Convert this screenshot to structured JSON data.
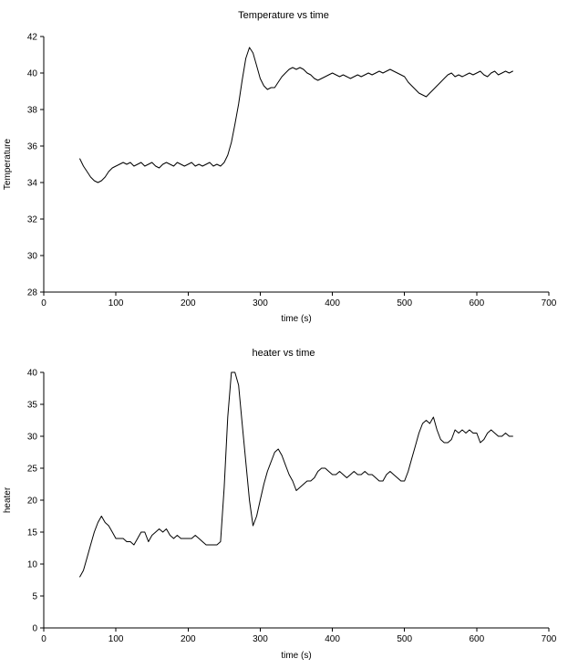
{
  "page": {
    "background": "#ffffff",
    "line_color": "#000000",
    "text_color": "#000000"
  },
  "chart_data": [
    {
      "type": "line",
      "title": "Temperature vs time",
      "xlabel": "time (s)",
      "ylabel": "Temperature",
      "xlim": [
        0,
        700
      ],
      "ylim": [
        28,
        42
      ],
      "xticks": [
        0,
        100,
        200,
        300,
        400,
        500,
        600,
        700
      ],
      "yticks": [
        28,
        30,
        32,
        34,
        36,
        38,
        40,
        42
      ],
      "grid": false,
      "legend": "none",
      "line_color": "#000000",
      "series": [
        {
          "name": "Temperature",
          "points": [
            [
              50,
              35.3
            ],
            [
              55,
              34.9
            ],
            [
              60,
              34.6
            ],
            [
              65,
              34.3
            ],
            [
              70,
              34.1
            ],
            [
              75,
              34.0
            ],
            [
              80,
              34.1
            ],
            [
              85,
              34.3
            ],
            [
              90,
              34.6
            ],
            [
              95,
              34.8
            ],
            [
              100,
              34.9
            ],
            [
              105,
              35.0
            ],
            [
              110,
              35.1
            ],
            [
              115,
              35.0
            ],
            [
              120,
              35.1
            ],
            [
              125,
              34.9
            ],
            [
              130,
              35.0
            ],
            [
              135,
              35.1
            ],
            [
              140,
              34.9
            ],
            [
              145,
              35.0
            ],
            [
              150,
              35.1
            ],
            [
              155,
              34.9
            ],
            [
              160,
              34.8
            ],
            [
              165,
              35.0
            ],
            [
              170,
              35.1
            ],
            [
              175,
              35.0
            ],
            [
              180,
              34.9
            ],
            [
              185,
              35.1
            ],
            [
              190,
              35.0
            ],
            [
              195,
              34.9
            ],
            [
              200,
              35.0
            ],
            [
              205,
              35.1
            ],
            [
              210,
              34.9
            ],
            [
              215,
              35.0
            ],
            [
              220,
              34.9
            ],
            [
              225,
              35.0
            ],
            [
              230,
              35.1
            ],
            [
              235,
              34.9
            ],
            [
              240,
              35.0
            ],
            [
              245,
              34.9
            ],
            [
              250,
              35.1
            ],
            [
              255,
              35.5
            ],
            [
              260,
              36.2
            ],
            [
              265,
              37.2
            ],
            [
              270,
              38.3
            ],
            [
              275,
              39.6
            ],
            [
              280,
              40.8
            ],
            [
              285,
              41.4
            ],
            [
              290,
              41.1
            ],
            [
              295,
              40.4
            ],
            [
              300,
              39.7
            ],
            [
              305,
              39.3
            ],
            [
              310,
              39.1
            ],
            [
              315,
              39.2
            ],
            [
              320,
              39.2
            ],
            [
              325,
              39.5
            ],
            [
              330,
              39.8
            ],
            [
              335,
              40.0
            ],
            [
              340,
              40.2
            ],
            [
              345,
              40.3
            ],
            [
              350,
              40.2
            ],
            [
              355,
              40.3
            ],
            [
              360,
              40.2
            ],
            [
              365,
              40.0
            ],
            [
              370,
              39.9
            ],
            [
              375,
              39.7
            ],
            [
              380,
              39.6
            ],
            [
              385,
              39.7
            ],
            [
              390,
              39.8
            ],
            [
              395,
              39.9
            ],
            [
              400,
              40.0
            ],
            [
              405,
              39.9
            ],
            [
              410,
              39.8
            ],
            [
              415,
              39.9
            ],
            [
              420,
              39.8
            ],
            [
              425,
              39.7
            ],
            [
              430,
              39.8
            ],
            [
              435,
              39.9
            ],
            [
              440,
              39.8
            ],
            [
              445,
              39.9
            ],
            [
              450,
              40.0
            ],
            [
              455,
              39.9
            ],
            [
              460,
              40.0
            ],
            [
              465,
              40.1
            ],
            [
              470,
              40.0
            ],
            [
              475,
              40.1
            ],
            [
              480,
              40.2
            ],
            [
              485,
              40.1
            ],
            [
              490,
              40.0
            ],
            [
              495,
              39.9
            ],
            [
              500,
              39.8
            ],
            [
              505,
              39.5
            ],
            [
              510,
              39.3
            ],
            [
              515,
              39.1
            ],
            [
              520,
              38.9
            ],
            [
              525,
              38.8
            ],
            [
              530,
              38.7
            ],
            [
              535,
              38.9
            ],
            [
              540,
              39.1
            ],
            [
              545,
              39.3
            ],
            [
              550,
              39.5
            ],
            [
              555,
              39.7
            ],
            [
              560,
              39.9
            ],
            [
              565,
              40.0
            ],
            [
              570,
              39.8
            ],
            [
              575,
              39.9
            ],
            [
              580,
              39.8
            ],
            [
              585,
              39.9
            ],
            [
              590,
              40.0
            ],
            [
              595,
              39.9
            ],
            [
              600,
              40.0
            ],
            [
              605,
              40.1
            ],
            [
              610,
              39.9
            ],
            [
              615,
              39.8
            ],
            [
              620,
              40.0
            ],
            [
              625,
              40.1
            ],
            [
              630,
              39.9
            ],
            [
              635,
              40.0
            ],
            [
              640,
              40.1
            ],
            [
              645,
              40.0
            ],
            [
              650,
              40.1
            ]
          ]
        }
      ]
    },
    {
      "type": "line",
      "title": "heater vs time",
      "xlabel": "time (s)",
      "ylabel": "heater",
      "xlim": [
        0,
        700
      ],
      "ylim": [
        0,
        40
      ],
      "xticks": [
        0,
        100,
        200,
        300,
        400,
        500,
        600,
        700
      ],
      "yticks": [
        0,
        5,
        10,
        15,
        20,
        25,
        30,
        35,
        40
      ],
      "grid": false,
      "legend": "none",
      "line_color": "#000000",
      "series": [
        {
          "name": "heater",
          "points": [
            [
              50,
              8
            ],
            [
              55,
              9
            ],
            [
              60,
              11
            ],
            [
              65,
              13
            ],
            [
              70,
              15
            ],
            [
              75,
              16.5
            ],
            [
              80,
              17.5
            ],
            [
              85,
              16.5
            ],
            [
              90,
              16
            ],
            [
              95,
              15
            ],
            [
              100,
              14
            ],
            [
              105,
              14
            ],
            [
              110,
              14
            ],
            [
              115,
              13.5
            ],
            [
              120,
              13.5
            ],
            [
              125,
              13
            ],
            [
              130,
              14
            ],
            [
              135,
              15
            ],
            [
              140,
              15
            ],
            [
              145,
              13.5
            ],
            [
              150,
              14.5
            ],
            [
              155,
              15
            ],
            [
              160,
              15.5
            ],
            [
              165,
              15
            ],
            [
              170,
              15.5
            ],
            [
              175,
              14.5
            ],
            [
              180,
              14
            ],
            [
              185,
              14.5
            ],
            [
              190,
              14
            ],
            [
              195,
              14
            ],
            [
              200,
              14
            ],
            [
              205,
              14
            ],
            [
              210,
              14.5
            ],
            [
              215,
              14
            ],
            [
              220,
              13.5
            ],
            [
              225,
              13
            ],
            [
              230,
              13
            ],
            [
              235,
              13
            ],
            [
              240,
              13
            ],
            [
              245,
              13.5
            ],
            [
              250,
              22
            ],
            [
              255,
              33
            ],
            [
              260,
              40
            ],
            [
              265,
              40
            ],
            [
              270,
              38
            ],
            [
              275,
              32
            ],
            [
              280,
              26
            ],
            [
              285,
              20
            ],
            [
              290,
              16
            ],
            [
              295,
              17.5
            ],
            [
              300,
              20
            ],
            [
              305,
              22.5
            ],
            [
              310,
              24.5
            ],
            [
              315,
              26
            ],
            [
              320,
              27.5
            ],
            [
              325,
              28
            ],
            [
              330,
              27
            ],
            [
              335,
              25.5
            ],
            [
              340,
              24
            ],
            [
              345,
              23
            ],
            [
              350,
              21.5
            ],
            [
              355,
              22
            ],
            [
              360,
              22.5
            ],
            [
              365,
              23
            ],
            [
              370,
              23
            ],
            [
              375,
              23.5
            ],
            [
              380,
              24.5
            ],
            [
              385,
              25
            ],
            [
              390,
              25
            ],
            [
              395,
              24.5
            ],
            [
              400,
              24
            ],
            [
              405,
              24
            ],
            [
              410,
              24.5
            ],
            [
              415,
              24
            ],
            [
              420,
              23.5
            ],
            [
              425,
              24
            ],
            [
              430,
              24.5
            ],
            [
              435,
              24
            ],
            [
              440,
              24
            ],
            [
              445,
              24.5
            ],
            [
              450,
              24
            ],
            [
              455,
              24
            ],
            [
              460,
              23.5
            ],
            [
              465,
              23
            ],
            [
              470,
              23
            ],
            [
              475,
              24
            ],
            [
              480,
              24.5
            ],
            [
              485,
              24
            ],
            [
              490,
              23.5
            ],
            [
              495,
              23
            ],
            [
              500,
              23
            ],
            [
              505,
              24.5
            ],
            [
              510,
              26.5
            ],
            [
              515,
              28.5
            ],
            [
              520,
              30.5
            ],
            [
              525,
              32
            ],
            [
              530,
              32.5
            ],
            [
              535,
              32
            ],
            [
              540,
              33
            ],
            [
              545,
              31
            ],
            [
              550,
              29.5
            ],
            [
              555,
              29
            ],
            [
              560,
              29
            ],
            [
              565,
              29.5
            ],
            [
              570,
              31
            ],
            [
              575,
              30.5
            ],
            [
              580,
              31
            ],
            [
              585,
              30.5
            ],
            [
              590,
              31
            ],
            [
              595,
              30.5
            ],
            [
              600,
              30.5
            ],
            [
              605,
              29
            ],
            [
              610,
              29.5
            ],
            [
              615,
              30.5
            ],
            [
              620,
              31
            ],
            [
              625,
              30.5
            ],
            [
              630,
              30
            ],
            [
              635,
              30
            ],
            [
              640,
              30.5
            ],
            [
              645,
              30
            ],
            [
              650,
              30
            ]
          ]
        }
      ]
    }
  ]
}
